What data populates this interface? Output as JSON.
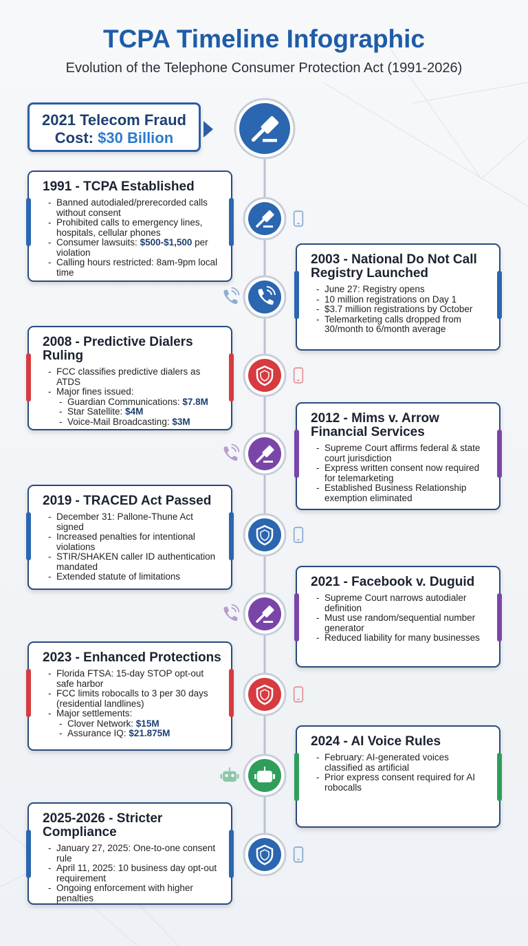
{
  "header": {
    "title": "TCPA Timeline Infographic",
    "subtitle": "Evolution of the Telephone Consumer Protection Act (1991-2026)"
  },
  "callout": {
    "line1": "2021 Telecom Fraud",
    "label": "Cost:",
    "value": "$30 Billion"
  },
  "events": [
    {
      "title": "1991 - TCPA Established",
      "color": "#2b66b0",
      "side": "left",
      "icon": "gavel",
      "side_icon": "mobile",
      "items": [
        "Banned autodialed/prerecorded calls without consent",
        "Prohibited calls to emergency lines, hospitals, cellular phones",
        {
          "label": "Consumer lawsuits:",
          "value": "$500-$1,500",
          "suffix": "per violation"
        },
        "Calling hours restricted: 8am-9pm local time"
      ]
    },
    {
      "title": "2003 - National Do Not Call Registry Launched",
      "color": "#2b66b0",
      "side": "right",
      "icon": "phone",
      "side_icon": "call",
      "items": [
        "June 27: Registry opens",
        "10 million registrations on Day 1",
        "$3.7 million registrations by October",
        "Telemarketing calls dropped from 30/month to 6/month average"
      ]
    },
    {
      "title": "2008 - Predictive Dialers Ruling",
      "color": "#d63b40",
      "side": "left",
      "icon": "shield",
      "side_icon": "mobile",
      "items": [
        "FCC classifies predictive dialers as ATDS",
        "Major fines issued:",
        {
          "label": "Guardian Communications:",
          "value": "$7.8M",
          "sub": true
        },
        {
          "label": "Star Satellite:",
          "value": "$4M",
          "sub": true
        },
        {
          "label": "Voice-Mail Broadcasting:",
          "value": "$3M",
          "sub": true
        }
      ]
    },
    {
      "title": "2012 - Mims v. Arrow Financial Services",
      "color": "#7a45a8",
      "side": "right",
      "icon": "gavel",
      "side_icon": "call",
      "items": [
        "Supreme Court affirms federal & state court jurisdiction",
        "Express written consent now required for telemarketing",
        "Established Business Relationship exemption eliminated"
      ]
    },
    {
      "title": "2019 - TRACED Act Passed",
      "color": "#2b66b0",
      "side": "left",
      "icon": "shield",
      "side_icon": "mobile",
      "items": [
        "December 31: Pallone-Thune Act signed",
        "Increased penalties for intentional violations",
        "STIR/SHAKEN caller ID authentication mandated",
        "Extended statute of limitations"
      ]
    },
    {
      "title": "2021 - Facebook v. Duguid",
      "color": "#7a45a8",
      "side": "right",
      "icon": "gavel",
      "side_icon": "call",
      "items": [
        "Supreme Court narrows autodialer definition",
        "Must use random/sequential number generator",
        "Reduced liability for many businesses"
      ]
    },
    {
      "title": "2023 - Enhanced Protections",
      "color": "#d63b40",
      "side": "left",
      "icon": "shield",
      "side_icon": "mobile",
      "items": [
        "Florida FTSA: 15-day STOP opt-out safe harbor",
        "FCC limits robocalls to 3 per 30 days (residential landlines)",
        "Major settlements:",
        {
          "label": "Clover Network:",
          "value": "$15M",
          "sub": true
        },
        {
          "label": "Assurance IQ:",
          "value": "$21.875M",
          "sub": true
        }
      ]
    },
    {
      "title": "2024 - AI Voice Rules",
      "color": "#2f9e5b",
      "side": "right",
      "icon": "robot",
      "side_icon": "robot",
      "items": [
        "February: AI-generated voices classified as artificial",
        "Prior express consent required for AI robocalls"
      ]
    },
    {
      "title": "2025-2026 - Stricter Compliance",
      "color": "#2b66b0",
      "side": "left",
      "icon": "shield",
      "side_icon": "mobile",
      "items": [
        "January 27, 2025: One-to-one consent rule",
        "April 11, 2025: 10 business day opt-out requirement",
        "Ongoing enforcement with higher penalties"
      ]
    }
  ]
}
